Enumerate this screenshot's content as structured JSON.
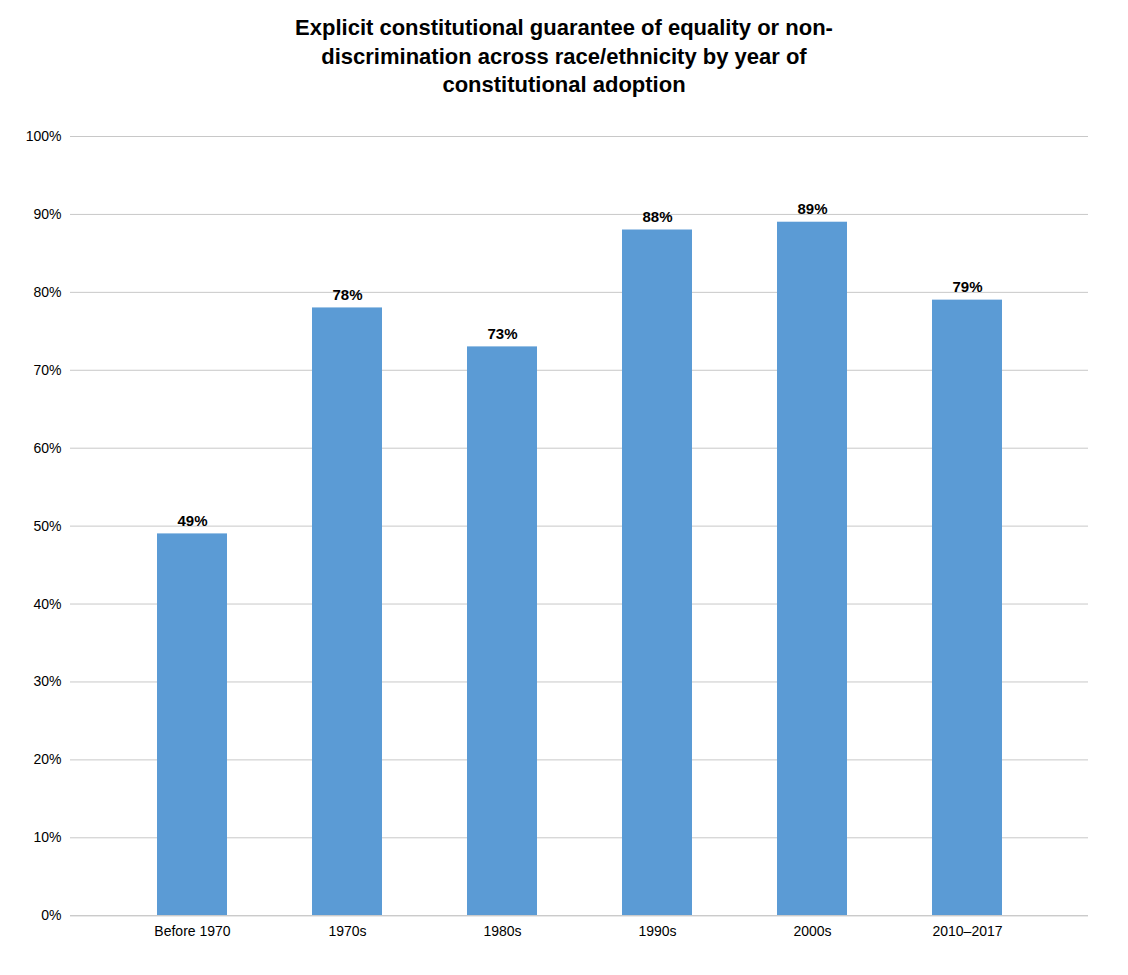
{
  "chart_data": {
    "type": "bar",
    "title": "Explicit constitutional guarantee of equality or non-\ndiscrimination across race/ethnicity by year of\nconstitutional adoption",
    "categories": [
      "Before 1970",
      "1970s",
      "1980s",
      "1990s",
      "2000s",
      "2010–2017"
    ],
    "values": [
      49,
      78,
      73,
      88,
      89,
      79
    ],
    "value_labels": [
      "49%",
      "78%",
      "73%",
      "88%",
      "89%",
      "79%"
    ],
    "data_labels": true,
    "color": "#5B9BD5",
    "ylim": [
      0,
      100
    ],
    "yticks": [
      {
        "value": 0,
        "label": "0%"
      },
      {
        "value": 10,
        "label": "10%"
      },
      {
        "value": 20,
        "label": "20%"
      },
      {
        "value": 30,
        "label": "30%"
      },
      {
        "value": 40,
        "label": "40%"
      },
      {
        "value": 50,
        "label": "50%"
      },
      {
        "value": 60,
        "label": "60%"
      },
      {
        "value": 70,
        "label": "70%"
      },
      {
        "value": 80,
        "label": "80%"
      },
      {
        "value": 90,
        "label": "90%"
      },
      {
        "value": 100,
        "label": "100%"
      }
    ],
    "grid": true
  }
}
